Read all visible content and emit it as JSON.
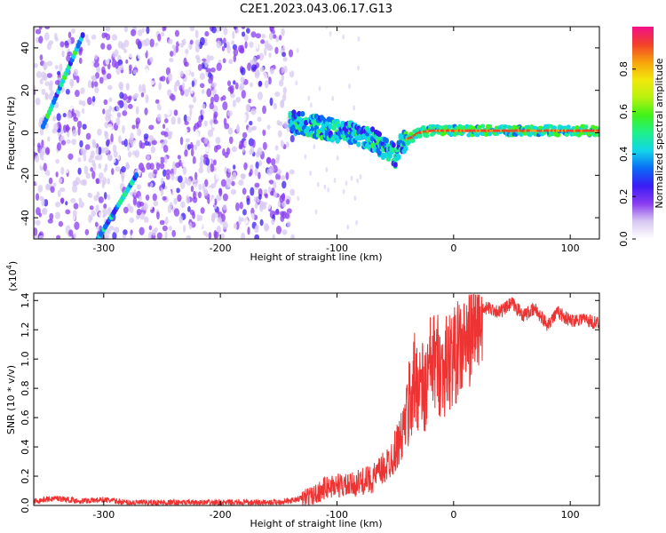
{
  "figure": {
    "title": "C2E1.2023.043.06.17.G13"
  },
  "colorbar": {
    "label": "Normalized spectral amplitude",
    "ticks": [
      "0.0",
      "0.2",
      "0.4",
      "0.6",
      "0.8"
    ],
    "stops": [
      "#ffffff",
      "#d8c8f2",
      "#8a3cf0",
      "#3a1cf5",
      "#0a6cf7",
      "#12d6e8",
      "#1ef08a",
      "#41f21a",
      "#b8f20f",
      "#f2e80c",
      "#f7a20c",
      "#f2402a",
      "#f20f8a"
    ]
  },
  "chart_data": [
    {
      "type": "heatmap",
      "xlabel": "Height of straight line (km)",
      "ylabel": "Frequency (Hz)",
      "xlim": [
        -360,
        125
      ],
      "ylim": [
        -50,
        50
      ],
      "xticks": [
        -300,
        -200,
        -100,
        0,
        100
      ],
      "xtick_labels": [
        "-300",
        "-200",
        "-100",
        "0",
        "100"
      ],
      "yticks": [
        -40,
        -20,
        0,
        20,
        40
      ],
      "ytick_labels": [
        "-40",
        "-20",
        "0",
        "20",
        "40"
      ],
      "noise_region_x": [
        -360,
        -138
      ],
      "streaks": [
        {
          "x": [
            -352,
            -318
          ],
          "y": [
            3,
            46
          ]
        },
        {
          "x": [
            -305,
            -272
          ],
          "y": [
            -50,
            -20
          ]
        }
      ],
      "signal_ridge": {
        "x": [
          -140,
          -130,
          -120,
          -110,
          -100,
          -90,
          -80,
          -70,
          -60,
          -50,
          -45,
          -40,
          -35,
          -30,
          -20,
          -10,
          0,
          20,
          40,
          60,
          80,
          100,
          125
        ],
        "y": [
          5,
          4,
          3,
          2,
          1,
          0,
          -1,
          -3,
          -7,
          -11,
          -5,
          -3,
          -2,
          0,
          1,
          1,
          1,
          1,
          1,
          1,
          1,
          1,
          1
        ]
      }
    },
    {
      "type": "line",
      "xlabel": "Height of straight line (km)",
      "ylabel": "SNR (10 * v/v)",
      "y_multiplier": "(x10",
      "y_multiplier_exp": "4",
      "y_multiplier_close": ")",
      "xlim": [
        -360,
        125
      ],
      "ylim": [
        0,
        1.45
      ],
      "xticks": [
        -300,
        -200,
        -100,
        0,
        100
      ],
      "xtick_labels": [
        "-300",
        "-200",
        "-100",
        "0",
        "100"
      ],
      "yticks": [
        0.0,
        0.2,
        0.4,
        0.6,
        0.8,
        1.0,
        1.2,
        1.4
      ],
      "ytick_labels": [
        "0.0",
        "0.2",
        "0.4",
        "0.6",
        "0.8",
        "1.0",
        "1.2",
        "1.4"
      ],
      "color": "#ee3333",
      "series": [
        {
          "x": [
            -360,
            -340,
            -320,
            -300,
            -280,
            -260,
            -240,
            -220,
            -200,
            -180,
            -160,
            -140,
            -130,
            -120,
            -110,
            -100,
            -90,
            -80,
            -70,
            -60,
            -55,
            -50,
            -45,
            -40,
            -35,
            -30,
            -25,
            -20,
            -15,
            -10,
            -5,
            0,
            10,
            20,
            25,
            30,
            40,
            50,
            60,
            70,
            80,
            90,
            100,
            110,
            120,
            125
          ],
          "y": [
            0.03,
            0.05,
            0.03,
            0.04,
            0.02,
            0.02,
            0.02,
            0.02,
            0.02,
            0.02,
            0.02,
            0.03,
            0.05,
            0.07,
            0.12,
            0.14,
            0.13,
            0.16,
            0.18,
            0.25,
            0.3,
            0.38,
            0.46,
            0.62,
            0.82,
            0.86,
            0.75,
            0.95,
            1.0,
            0.92,
            0.98,
            1.02,
            1.1,
            1.25,
            1.33,
            1.35,
            1.32,
            1.38,
            1.3,
            1.34,
            1.24,
            1.32,
            1.26,
            1.28,
            1.25,
            1.24
          ]
        }
      ]
    }
  ]
}
